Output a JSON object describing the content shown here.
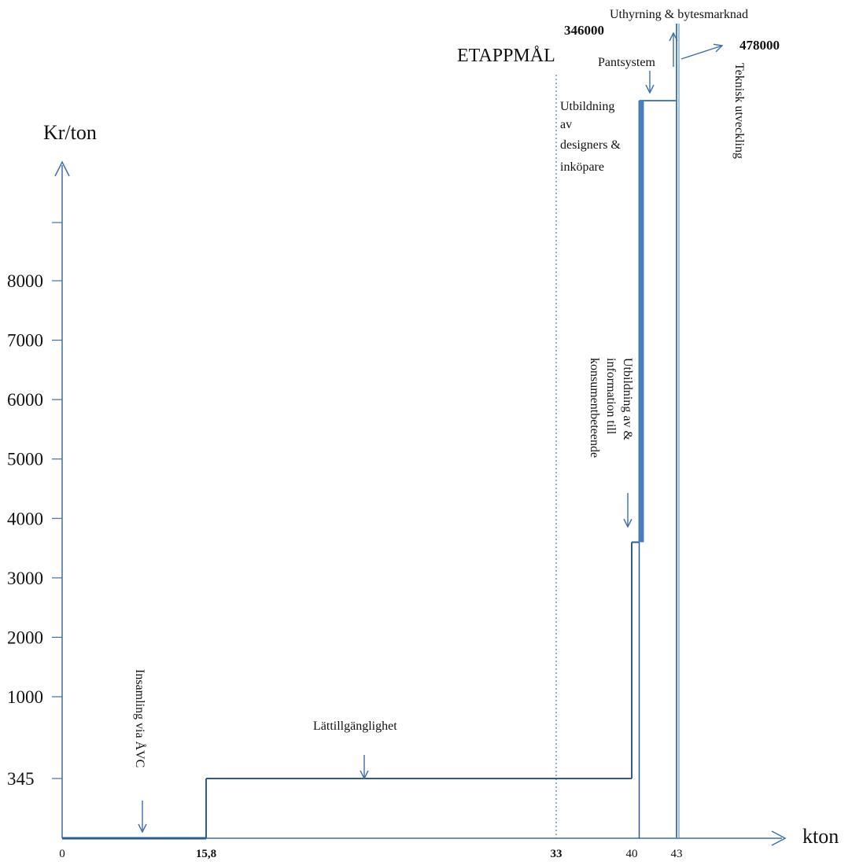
{
  "colors": {
    "line": "#2e5c92",
    "thick_line": "#4a7ebb",
    "axis": "#3f6fa8",
    "dotted": "#2e5c92"
  },
  "chart_data": {
    "type": "line",
    "xlabel": "kton",
    "ylabel": "Kr/ton",
    "x_ticks": [
      {
        "label": "0",
        "bold": false
      },
      {
        "label": "15,8",
        "bold": true
      },
      {
        "label": "33",
        "bold": true
      },
      {
        "label": "40",
        "bold": false
      },
      {
        "label": "43",
        "bold": false
      }
    ],
    "y_ticks": [
      "345",
      "1000",
      "2000",
      "3000",
      "4000",
      "5000",
      "6000",
      "7000",
      "8000"
    ],
    "series": [
      {
        "steps": [
          {
            "x_start": 0,
            "x_end": 15.8,
            "value": 0
          },
          {
            "x_start": 15.8,
            "x_end": 40,
            "value": 345
          },
          {
            "x_start": 40,
            "x_end": 40.5,
            "value": 3600
          },
          {
            "x_start": 40.5,
            "x_end": 43,
            "value": 346000
          },
          {
            "x_start": 43,
            "x_end": 50,
            "value": 478000
          }
        ]
      }
    ],
    "milestone": {
      "x": 33,
      "label": "ETAPPMÅL"
    },
    "annotations": {
      "insamling": "Insamling via ÅVC",
      "lattillganglighet": "Lättillgänglighet",
      "utbildning_konsument": [
        "Utbildning av &",
        "information till",
        "konsumentbeteende"
      ],
      "utbildning_designers": [
        "Utbildning",
        "av",
        "designers &",
        "inköpare"
      ],
      "pantsystem": "Pantsystem",
      "uthyrning": "Uthyrning & bytesmarknad",
      "teknisk": "Teknisk utveckling",
      "value_346000": "346000",
      "value_478000": "478000"
    }
  }
}
